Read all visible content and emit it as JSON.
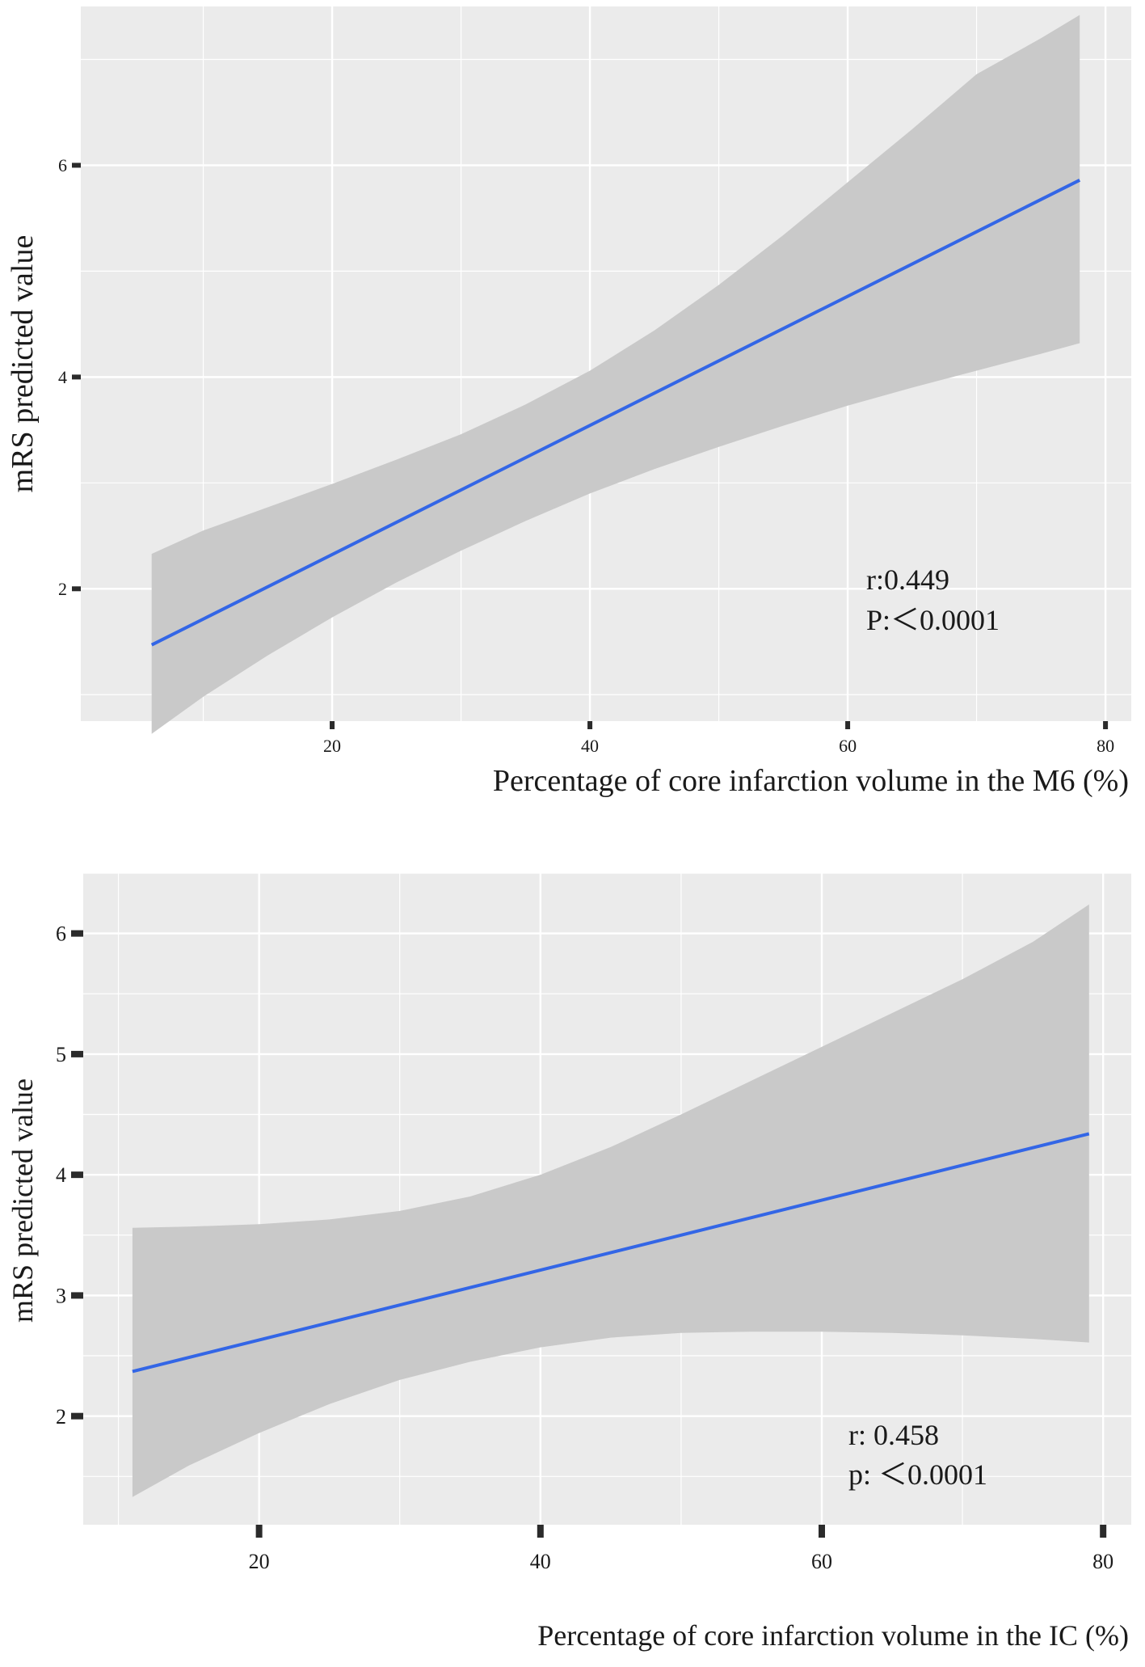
{
  "chart_data": [
    {
      "type": "line",
      "title": "",
      "xlabel": "Percentage of core infarction volume in the M6 (%)",
      "ylabel": "mRS predicted value",
      "xlim": [
        0.5,
        82
      ],
      "ylim": [
        0.75,
        7.5
      ],
      "x_ticks": [
        20,
        40,
        60,
        80
      ],
      "x_tick_labels": [
        "20",
        "40",
        "60",
        "80"
      ],
      "y_ticks": [
        2,
        4,
        6
      ],
      "y_tick_labels": [
        "2",
        "4",
        "6"
      ],
      "grid": true,
      "fit_line": {
        "x": [
          6,
          78
        ],
        "y": [
          1.47,
          5.86
        ]
      },
      "confidence_band": {
        "x": [
          6,
          10,
          15,
          20,
          25,
          30,
          35,
          40,
          45,
          50,
          55,
          60,
          65,
          70,
          75,
          78
        ],
        "upper": [
          2.33,
          2.55,
          2.77,
          2.99,
          3.22,
          3.46,
          3.74,
          4.06,
          4.44,
          4.87,
          5.34,
          5.84,
          6.34,
          6.86,
          7.2,
          7.42
        ],
        "lower": [
          0.63,
          0.98,
          1.37,
          1.73,
          2.06,
          2.36,
          2.64,
          2.9,
          3.13,
          3.34,
          3.54,
          3.73,
          3.9,
          4.06,
          4.22,
          4.32
        ]
      },
      "annotation": [
        "r:0.449",
        "P:＜0.0001"
      ],
      "colors": {
        "panel": "#ebebeb",
        "grid": "#ffffff",
        "line": "#3366e6",
        "band": "#c9c9c9"
      }
    },
    {
      "type": "line",
      "title": "",
      "xlabel": "Percentage of core infarction volume in the IC (%)",
      "ylabel": "mRS predicted value",
      "xlim": [
        7.5,
        82
      ],
      "ylim": [
        1.1,
        6.5
      ],
      "x_ticks": [
        20,
        40,
        60,
        80
      ],
      "x_tick_labels": [
        "20",
        "40",
        "60",
        "80"
      ],
      "y_ticks": [
        2,
        3,
        4,
        5,
        6
      ],
      "y_tick_labels": [
        "2",
        "3",
        "4",
        "5",
        "6"
      ],
      "grid": true,
      "fit_line": {
        "x": [
          11,
          79
        ],
        "y": [
          2.37,
          4.34
        ]
      },
      "confidence_band": {
        "x": [
          11,
          15,
          20,
          25,
          30,
          35,
          40,
          45,
          50,
          55,
          60,
          65,
          70,
          75,
          79
        ],
        "upper": [
          3.56,
          3.57,
          3.59,
          3.63,
          3.7,
          3.82,
          4.0,
          4.23,
          4.5,
          4.78,
          5.06,
          5.34,
          5.62,
          5.93,
          6.24
        ],
        "lower": [
          1.33,
          1.59,
          1.86,
          2.1,
          2.3,
          2.45,
          2.57,
          2.65,
          2.69,
          2.7,
          2.7,
          2.69,
          2.67,
          2.64,
          2.61
        ]
      },
      "annotation": [
        "r: 0.458",
        "p: ＜0.0001"
      ],
      "colors": {
        "panel": "#ebebeb",
        "grid": "#ffffff",
        "line": "#3366e6",
        "band": "#c9c9c9"
      }
    }
  ]
}
